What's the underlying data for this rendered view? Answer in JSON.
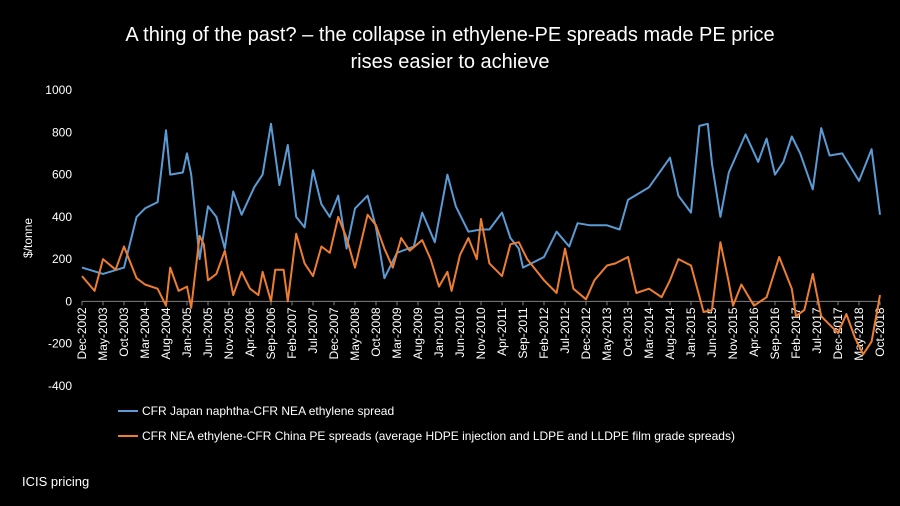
{
  "chart_data": {
    "type": "line",
    "title": "A thing of the past? – the collapse in ethylene-PE spreads made PE price",
    "subtitle": "rises easier to achieve",
    "xlabel": "",
    "ylabel": "$/tonne",
    "ylim": [
      -400,
      1000
    ],
    "ytick_step": 200,
    "grid": false,
    "legend_position": "bottom",
    "x_start": "Dec-2002",
    "x_end": "Oct-2018",
    "x_tick_labels": [
      "Dec-2002",
      "May-2003",
      "Oct-2003",
      "Mar-2004",
      "Aug-2004",
      "Jan-2005",
      "Jun-2005",
      "Nov-2005",
      "Apr-2006",
      "Sep-2006",
      "Feb-2007",
      "Jul-2007",
      "Dec-2007",
      "May-2008",
      "Oct-2008",
      "Mar-2009",
      "Aug-2009",
      "Jan-2010",
      "Jun-2010",
      "Nov-2010",
      "Apr-2011",
      "Sep-2011",
      "Feb-2012",
      "Jul-2012",
      "Dec-2012",
      "May-2013",
      "Oct-2013",
      "Mar-2014",
      "Aug-2014",
      "Jan-2015",
      "Jun-2015",
      "Nov-2015",
      "Apr-2016",
      "Sep-2016",
      "Feb-2017",
      "Jul-2017",
      "Dec-2017",
      "May-2018",
      "Oct-2018"
    ],
    "series": [
      {
        "name": "CFR Japan naphtha-CFR NEA ethylene spread",
        "color": "#5B9BD5",
        "points": [
          [
            "Dec-2002",
            160
          ],
          [
            "May-2003",
            130
          ],
          [
            "Oct-2003",
            160
          ],
          [
            "Jan-2004",
            400
          ],
          [
            "Mar-2004",
            440
          ],
          [
            "Jun-2004",
            470
          ],
          [
            "Aug-2004",
            810
          ],
          [
            "Sep-2004",
            600
          ],
          [
            "Dec-2004",
            610
          ],
          [
            "Jan-2005",
            700
          ],
          [
            "Feb-2005",
            600
          ],
          [
            "Apr-2005",
            200
          ],
          [
            "Jun-2005",
            450
          ],
          [
            "Aug-2005",
            400
          ],
          [
            "Oct-2005",
            250
          ],
          [
            "Dec-2005",
            520
          ],
          [
            "Feb-2006",
            410
          ],
          [
            "May-2006",
            540
          ],
          [
            "Jul-2006",
            600
          ],
          [
            "Sep-2006",
            840
          ],
          [
            "Nov-2006",
            550
          ],
          [
            "Jan-2007",
            740
          ],
          [
            "Mar-2007",
            400
          ],
          [
            "May-2007",
            350
          ],
          [
            "Jul-2007",
            620
          ],
          [
            "Sep-2007",
            460
          ],
          [
            "Nov-2007",
            400
          ],
          [
            "Jan-2008",
            500
          ],
          [
            "Mar-2008",
            250
          ],
          [
            "May-2008",
            440
          ],
          [
            "Aug-2008",
            500
          ],
          [
            "Oct-2008",
            350
          ],
          [
            "Dec-2008",
            110
          ],
          [
            "Mar-2009",
            230
          ],
          [
            "Jul-2009",
            260
          ],
          [
            "Sep-2009",
            420
          ],
          [
            "Dec-2009",
            280
          ],
          [
            "Mar-2010",
            600
          ],
          [
            "May-2010",
            450
          ],
          [
            "Aug-2010",
            330
          ],
          [
            "Nov-2010",
            340
          ],
          [
            "Jan-2011",
            340
          ],
          [
            "Apr-2011",
            420
          ],
          [
            "Jun-2011",
            300
          ],
          [
            "Aug-2011",
            250
          ],
          [
            "Sep-2011",
            160
          ],
          [
            "Feb-2012",
            210
          ],
          [
            "May-2012",
            330
          ],
          [
            "Aug-2012",
            260
          ],
          [
            "Oct-2012",
            370
          ],
          [
            "Jan-2013",
            360
          ],
          [
            "May-2013",
            360
          ],
          [
            "Aug-2013",
            340
          ],
          [
            "Oct-2013",
            480
          ],
          [
            "Mar-2014",
            540
          ],
          [
            "Aug-2014",
            680
          ],
          [
            "Oct-2014",
            500
          ],
          [
            "Jan-2015",
            420
          ],
          [
            "Mar-2015",
            830
          ],
          [
            "May-2015",
            840
          ],
          [
            "Jun-2015",
            650
          ],
          [
            "Aug-2015",
            400
          ],
          [
            "Oct-2015",
            610
          ],
          [
            "Feb-2016",
            790
          ],
          [
            "May-2016",
            660
          ],
          [
            "Jul-2016",
            770
          ],
          [
            "Sep-2016",
            600
          ],
          [
            "Nov-2016",
            660
          ],
          [
            "Jan-2017",
            780
          ],
          [
            "Mar-2017",
            700
          ],
          [
            "Jun-2017",
            530
          ],
          [
            "Aug-2017",
            820
          ],
          [
            "Oct-2017",
            690
          ],
          [
            "Jan-2018",
            700
          ],
          [
            "May-2018",
            570
          ],
          [
            "Aug-2018",
            720
          ],
          [
            "Oct-2018",
            410
          ]
        ]
      },
      {
        "name": "CFR NEA ethylene-CFR China PE spreads (average HDPE injection and LDPE and LLDPE film grade spreads)",
        "color": "#ED7D31",
        "points": [
          [
            "Dec-2002",
            120
          ],
          [
            "Mar-2003",
            50
          ],
          [
            "May-2003",
            200
          ],
          [
            "Aug-2003",
            150
          ],
          [
            "Oct-2003",
            260
          ],
          [
            "Jan-2004",
            110
          ],
          [
            "Mar-2004",
            80
          ],
          [
            "Jun-2004",
            60
          ],
          [
            "Aug-2004",
            -20
          ],
          [
            "Sep-2004",
            160
          ],
          [
            "Nov-2004",
            50
          ],
          [
            "Jan-2005",
            70
          ],
          [
            "Feb-2005",
            -30
          ],
          [
            "Apr-2005",
            310
          ],
          [
            "May-2005",
            270
          ],
          [
            "Jun-2005",
            100
          ],
          [
            "Aug-2005",
            130
          ],
          [
            "Oct-2005",
            240
          ],
          [
            "Dec-2005",
            30
          ],
          [
            "Feb-2006",
            140
          ],
          [
            "Apr-2006",
            60
          ],
          [
            "Jun-2006",
            30
          ],
          [
            "Jul-2006",
            140
          ],
          [
            "Sep-2006",
            0
          ],
          [
            "Oct-2006",
            150
          ],
          [
            "Dec-2006",
            150
          ],
          [
            "Jan-2007",
            0
          ],
          [
            "Mar-2007",
            320
          ],
          [
            "May-2007",
            180
          ],
          [
            "Jul-2007",
            120
          ],
          [
            "Sep-2007",
            260
          ],
          [
            "Nov-2007",
            230
          ],
          [
            "Jan-2008",
            400
          ],
          [
            "Mar-2008",
            300
          ],
          [
            "May-2008",
            160
          ],
          [
            "Aug-2008",
            410
          ],
          [
            "Oct-2008",
            360
          ],
          [
            "Dec-2008",
            250
          ],
          [
            "Feb-2009",
            160
          ],
          [
            "Apr-2009",
            300
          ],
          [
            "Jun-2009",
            240
          ],
          [
            "Sep-2009",
            290
          ],
          [
            "Nov-2009",
            200
          ],
          [
            "Jan-2010",
            70
          ],
          [
            "Mar-2010",
            140
          ],
          [
            "Apr-2010",
            50
          ],
          [
            "Jun-2010",
            220
          ],
          [
            "Aug-2010",
            300
          ],
          [
            "Oct-2010",
            200
          ],
          [
            "Nov-2010",
            390
          ],
          [
            "Jan-2011",
            180
          ],
          [
            "Apr-2011",
            120
          ],
          [
            "Jun-2011",
            270
          ],
          [
            "Aug-2011",
            280
          ],
          [
            "Oct-2011",
            200
          ],
          [
            "Dec-2011",
            150
          ],
          [
            "Feb-2012",
            100
          ],
          [
            "May-2012",
            40
          ],
          [
            "Jul-2012",
            250
          ],
          [
            "Sep-2012",
            60
          ],
          [
            "Dec-2012",
            10
          ],
          [
            "Feb-2013",
            100
          ],
          [
            "May-2013",
            170
          ],
          [
            "Jul-2013",
            180
          ],
          [
            "Oct-2013",
            210
          ],
          [
            "Dec-2013",
            40
          ],
          [
            "Mar-2014",
            60
          ],
          [
            "Jun-2014",
            20
          ],
          [
            "Aug-2014",
            100
          ],
          [
            "Oct-2014",
            200
          ],
          [
            "Jan-2015",
            170
          ],
          [
            "Apr-2015",
            -50
          ],
          [
            "Jun-2015",
            -40
          ],
          [
            "Aug-2015",
            280
          ],
          [
            "Oct-2015",
            90
          ],
          [
            "Nov-2015",
            -20
          ],
          [
            "Jan-2016",
            80
          ],
          [
            "Apr-2016",
            -20
          ],
          [
            "Jul-2016",
            20
          ],
          [
            "Oct-2016",
            210
          ],
          [
            "Jan-2017",
            60
          ],
          [
            "Feb-2017",
            -70
          ],
          [
            "Apr-2017",
            -40
          ],
          [
            "Jun-2017",
            130
          ],
          [
            "Aug-2017",
            -70
          ],
          [
            "Oct-2017",
            -110
          ],
          [
            "Dec-2017",
            -150
          ],
          [
            "Feb-2018",
            -60
          ],
          [
            "Apr-2018",
            -170
          ],
          [
            "Jun-2018",
            -250
          ],
          [
            "Aug-2018",
            -190
          ],
          [
            "Oct-2018",
            30
          ]
        ]
      }
    ],
    "source": "ICIS pricing"
  }
}
